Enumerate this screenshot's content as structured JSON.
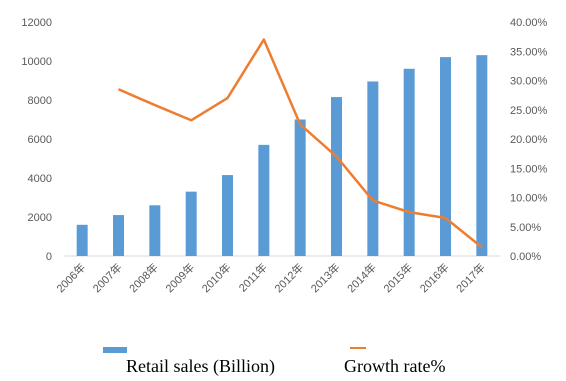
{
  "chart_data": {
    "type": "bar",
    "categories": [
      "2006年",
      "2007年",
      "2008年",
      "2009年",
      "2010年",
      "2011年",
      "2012年",
      "2013年",
      "2014年",
      "2015年",
      "2016年",
      "2017年"
    ],
    "series": [
      {
        "name": "Retail sales (Billion)",
        "type": "bar",
        "axis": "left",
        "color": "#5B9BD5",
        "values": [
          1600,
          2100,
          2600,
          3300,
          4150,
          5700,
          7000,
          8150,
          8950,
          9600,
          10200,
          10300
        ]
      },
      {
        "name": "Growth rate%",
        "type": "line",
        "axis": "right",
        "color": "#ED7D31",
        "values": [
          null,
          28.5,
          25.8,
          23.2,
          27.0,
          37.0,
          22.5,
          17.0,
          9.5,
          7.5,
          6.5,
          1.5
        ]
      }
    ],
    "y_left": {
      "min": 0,
      "max": 12000,
      "ticks": [
        "0",
        "2000",
        "4000",
        "6000",
        "8000",
        "10000",
        "12000"
      ]
    },
    "y_right": {
      "min": 0,
      "max": 40,
      "ticks": [
        "0.00%",
        "5.00%",
        "10.00%",
        "15.00%",
        "20.00%",
        "25.00%",
        "30.00%",
        "35.00%",
        "40.00%"
      ]
    },
    "grid": false,
    "legend_position": "bottom"
  }
}
